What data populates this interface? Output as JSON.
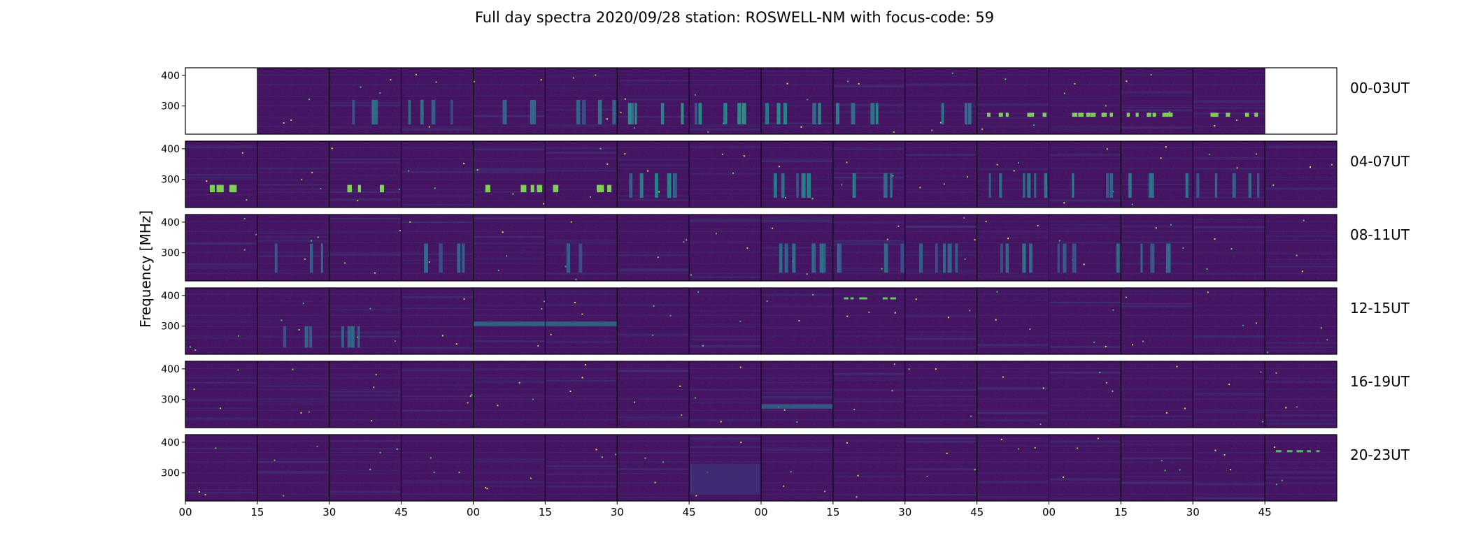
{
  "figure": {
    "title": "Full day spectra 2020/09/28 station: ROSWELL-NM with focus-code: 59"
  },
  "chart_data": {
    "type": "heatmap",
    "title": "Full day spectra 2020/09/28 station: ROSWELL-NM with focus-code: 59",
    "ylabel": "Frequency [MHz]",
    "xlabel": "",
    "y_ticks": [
      300,
      400
    ],
    "ylim": [
      215,
      418
    ],
    "x_tick_labels": [
      "00",
      "15",
      "30",
      "45",
      "00",
      "15",
      "30",
      "45",
      "00",
      "15",
      "30",
      "45",
      "00",
      "15",
      "30",
      "45"
    ],
    "row_labels": [
      "00-03UT",
      "04-07UT",
      "08-11UT",
      "12-15UT",
      "16-19UT",
      "20-23UT"
    ],
    "panels_per_row": 16,
    "panel_minutes": 15,
    "colormap": [
      "#440154",
      "#3b528b",
      "#21918c",
      "#5ec962",
      "#fde725"
    ],
    "background_color": "#451563",
    "missing_panels": [
      [
        0,
        0
      ],
      [
        0,
        15
      ]
    ],
    "features": [
      {
        "row": 0,
        "panels": [
          2,
          3,
          4,
          5
        ],
        "kind": "vertical bursts",
        "freq_range": [
          240,
          320
        ],
        "level": 0.35
      },
      {
        "row": 0,
        "panels": [
          6,
          7,
          8,
          9,
          10
        ],
        "kind": "vertical bursts",
        "freq_range": [
          240,
          310
        ],
        "level": 0.45
      },
      {
        "row": 0,
        "panels": [
          11,
          12,
          13,
          14
        ],
        "kind": "bright line",
        "freq_range": [
          265,
          278
        ],
        "level": 0.8
      },
      {
        "row": 1,
        "panels": [
          0,
          2,
          4,
          5
        ],
        "kind": "bright line",
        "freq_range": [
          258,
          282
        ],
        "level": 0.8
      },
      {
        "row": 1,
        "panels": [
          6,
          8,
          9,
          11,
          12,
          13,
          14
        ],
        "kind": "vertical bursts",
        "freq_range": [
          240,
          320
        ],
        "level": 0.4
      },
      {
        "row": 2,
        "panels": [
          1,
          3,
          5,
          8,
          9,
          10,
          11,
          12,
          13
        ],
        "kind": "vertical bursts",
        "freq_range": [
          235,
          330
        ],
        "level": 0.35
      },
      {
        "row": 3,
        "panels": [
          1,
          2
        ],
        "kind": "vertical bursts",
        "freq_range": [
          230,
          300
        ],
        "level": 0.35
      },
      {
        "row": 3,
        "panels": [
          4,
          5
        ],
        "kind": "band",
        "freq_range": [
          300,
          315
        ],
        "level": 0.4
      },
      {
        "row": 3,
        "panels": [
          9
        ],
        "kind": "bright line",
        "freq_range": [
          388,
          394
        ],
        "level": 0.75
      },
      {
        "row": 4,
        "panels": [
          8
        ],
        "kind": "band",
        "freq_range": [
          270,
          285
        ],
        "level": 0.35
      },
      {
        "row": 5,
        "panels": [
          7
        ],
        "kind": "band",
        "freq_range": [
          230,
          330
        ],
        "level": 0.15
      },
      {
        "row": 5,
        "panels": [
          15
        ],
        "kind": "bright line",
        "freq_range": [
          368,
          374
        ],
        "level": 0.7
      }
    ]
  }
}
